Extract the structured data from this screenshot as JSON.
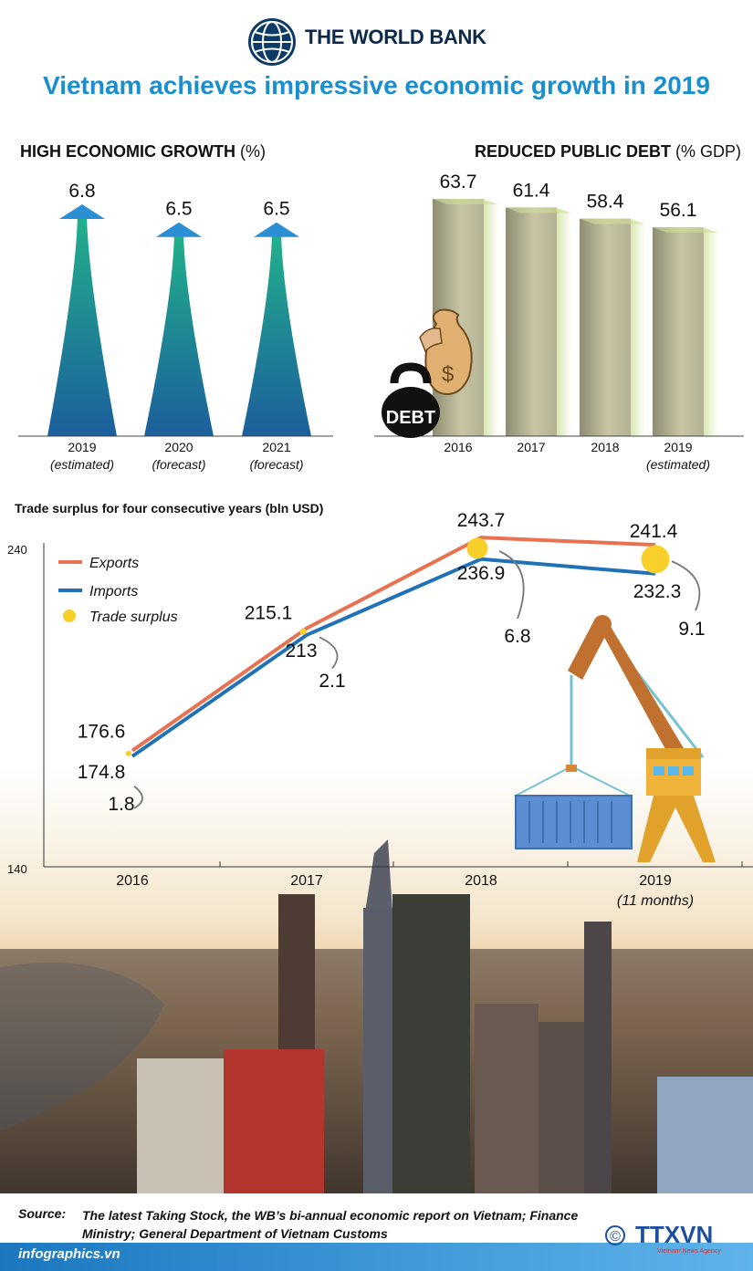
{
  "header": {
    "org_name": "THE WORLD BANK",
    "title": "Vietnam achieves impressive economic growth in 2019"
  },
  "chart_data": [
    {
      "type": "bar",
      "title": "HIGH ECONOMIC GROWTH",
      "unit": "(%)",
      "categories": [
        "2019",
        "2020",
        "2021"
      ],
      "category_notes": [
        "(estimated)",
        "(forecast)",
        "(forecast)"
      ],
      "values": [
        6.8,
        6.5,
        6.5
      ],
      "value_labels": [
        "6.8",
        "6.5",
        "6.5"
      ],
      "colors": {
        "top": "#22b18b",
        "bottom": "#1c5e9c",
        "arrow": "#2a8fd3"
      }
    },
    {
      "type": "bar",
      "title": "REDUCED PUBLIC DEBT",
      "unit": "(% GDP)",
      "categories": [
        "2016",
        "2017",
        "2018",
        "2019"
      ],
      "category_notes": [
        "",
        "",
        "",
        "(estimated)"
      ],
      "values": [
        63.7,
        61.4,
        58.4,
        56.1
      ],
      "value_labels": [
        "63.7",
        "61.4",
        "58.4",
        "56.1"
      ],
      "icon": {
        "name": "debt-weight-money-bag-icon",
        "text": "DEBT"
      },
      "colors": {
        "bar": "#a8a68a",
        "side": "#cfe09a"
      }
    },
    {
      "type": "line",
      "title": "Trade surplus for four consecutive years (bln USD)",
      "categories": [
        "2016",
        "2017",
        "2018",
        "2019"
      ],
      "category_notes": [
        "",
        "",
        "",
        "(11 months)"
      ],
      "ylim": [
        140,
        240
      ],
      "y_ticks": [
        "240",
        "140"
      ],
      "series": [
        {
          "name": "Exports",
          "values": [
            176.6,
            215.1,
            243.7,
            241.4
          ],
          "labels": [
            "176.6",
            "215.1",
            "243.7",
            "241.4"
          ],
          "color": "#e8714f"
        },
        {
          "name": "Imports",
          "values": [
            174.8,
            213,
            236.9,
            232.3
          ],
          "labels": [
            "174.8",
            "213",
            "236.9",
            "232.3"
          ],
          "color": "#1f72b8"
        }
      ],
      "surplus": {
        "name": "Trade surplus",
        "values": [
          1.8,
          2.1,
          6.8,
          9.1
        ],
        "labels": [
          "1.8",
          "2.1",
          "6.8",
          "9.1"
        ],
        "color": "#f9cf2a"
      },
      "icon": {
        "name": "port-crane-container-icon"
      }
    }
  ],
  "footer": {
    "source_label": "Source:",
    "source_text": "The latest Taking Stock, the WB’s bi-annual economic report on Vietnam; Finance Ministry; General Department of Vietnam Customs",
    "site": "infographics.vn",
    "agency": "TTXVN",
    "agency_sub": "Vietnam News Agency",
    "copyright": "©"
  }
}
